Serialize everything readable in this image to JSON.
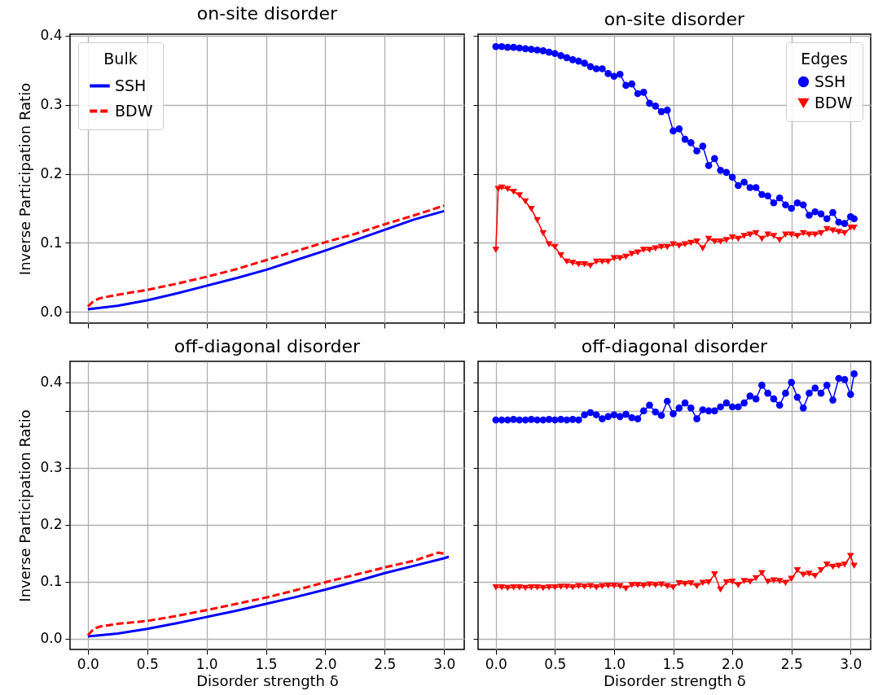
{
  "chart_data": [
    {
      "type": "line",
      "title": "on-site disorder",
      "ylabel": "Inverse Participation Ratio",
      "xlim": [
        -0.15,
        3.17
      ],
      "ylim": [
        -0.016,
        0.402
      ],
      "xticks": [
        0,
        0.5,
        1,
        1.5,
        2,
        2.5,
        3
      ],
      "yticks": [
        {
          "value": 0,
          "label": "0.0"
        },
        0.1,
        0.2,
        0.3,
        0.4
      ],
      "grid": true,
      "tick_labels": "y",
      "legend": "top left",
      "legend_title": "Bulk",
      "series": [
        {
          "name": "SSH",
          "color": "#0000ff",
          "line_style": "solid",
          "x": [
            0,
            0.25,
            0.5,
            0.75,
            1,
            1.25,
            1.5,
            1.75,
            2,
            2.25,
            2.5,
            2.75,
            3
          ],
          "values": [
            0.004,
            0.009,
            0.017,
            0.027,
            0.038,
            0.049,
            0.061,
            0.075,
            0.089,
            0.104,
            0.119,
            0.134,
            0.146
          ]
        },
        {
          "name": "BDW",
          "color": "#ff0000",
          "line_style": "dashed",
          "x": [
            0,
            0.05,
            0.1,
            0.25,
            0.5,
            0.75,
            1,
            1.25,
            1.5,
            1.75,
            2,
            2.25,
            2.5,
            2.75,
            3
          ],
          "values": [
            0.008,
            0.016,
            0.02,
            0.025,
            0.032,
            0.041,
            0.051,
            0.062,
            0.075,
            0.088,
            0.101,
            0.113,
            0.127,
            0.14,
            0.154
          ]
        }
      ]
    },
    {
      "type": "line",
      "title": "on-site disorder",
      "xlim": [
        -0.15,
        3.17
      ],
      "ylim": [
        -0.016,
        0.402
      ],
      "xticks": [
        0,
        0.5,
        1,
        1.5,
        2,
        2.5,
        3
      ],
      "yticks": [
        0,
        0.1,
        0.2,
        0.3,
        0.4
      ],
      "grid": true,
      "tick_labels": false,
      "legend": "top right",
      "legend_title": "Edges",
      "series": [
        {
          "name": "SSH",
          "color": "#0000ff",
          "marker": "circle",
          "x": [
            0,
            0.05,
            0.1,
            0.15,
            0.2,
            0.25,
            0.3,
            0.35,
            0.4,
            0.45,
            0.5,
            0.55,
            0.6,
            0.65,
            0.7,
            0.75,
            0.8,
            0.85,
            0.9,
            0.95,
            1,
            1.05,
            1.1,
            1.15,
            1.2,
            1.25,
            1.3,
            1.35,
            1.4,
            1.45,
            1.5,
            1.55,
            1.6,
            1.65,
            1.7,
            1.75,
            1.8,
            1.85,
            1.9,
            1.95,
            2,
            2.05,
            2.1,
            2.15,
            2.2,
            2.25,
            2.3,
            2.35,
            2.4,
            2.45,
            2.5,
            2.55,
            2.6,
            2.65,
            2.7,
            2.75,
            2.8,
            2.85,
            2.9,
            2.95,
            3,
            3.03
          ],
          "values": [
            0.384,
            0.384,
            0.383,
            0.383,
            0.382,
            0.381,
            0.38,
            0.379,
            0.378,
            0.376,
            0.374,
            0.371,
            0.368,
            0.365,
            0.363,
            0.36,
            0.355,
            0.352,
            0.352,
            0.345,
            0.341,
            0.344,
            0.328,
            0.33,
            0.316,
            0.318,
            0.302,
            0.298,
            0.29,
            0.292,
            0.262,
            0.265,
            0.25,
            0.245,
            0.233,
            0.24,
            0.212,
            0.222,
            0.205,
            0.202,
            0.195,
            0.183,
            0.188,
            0.18,
            0.18,
            0.17,
            0.168,
            0.158,
            0.165,
            0.155,
            0.15,
            0.158,
            0.155,
            0.14,
            0.145,
            0.142,
            0.135,
            0.144,
            0.13,
            0.128,
            0.138,
            0.135
          ]
        },
        {
          "name": "BDW",
          "color": "#ff0000",
          "marker": "triangle",
          "x": [
            0,
            0.02,
            0.05,
            0.1,
            0.15,
            0.2,
            0.25,
            0.3,
            0.35,
            0.4,
            0.45,
            0.5,
            0.55,
            0.6,
            0.65,
            0.7,
            0.75,
            0.8,
            0.85,
            0.9,
            0.95,
            1,
            1.05,
            1.1,
            1.15,
            1.2,
            1.25,
            1.3,
            1.35,
            1.4,
            1.45,
            1.5,
            1.55,
            1.6,
            1.65,
            1.7,
            1.75,
            1.8,
            1.85,
            1.9,
            1.95,
            2,
            2.05,
            2.1,
            2.15,
            2.2,
            2.25,
            2.3,
            2.35,
            2.4,
            2.45,
            2.5,
            2.55,
            2.6,
            2.65,
            2.7,
            2.75,
            2.8,
            2.85,
            2.9,
            2.95,
            3,
            3.03
          ],
          "values": [
            0.09,
            0.178,
            0.18,
            0.178,
            0.174,
            0.169,
            0.16,
            0.149,
            0.133,
            0.114,
            0.098,
            0.094,
            0.082,
            0.073,
            0.071,
            0.069,
            0.069,
            0.067,
            0.073,
            0.073,
            0.073,
            0.078,
            0.078,
            0.08,
            0.084,
            0.086,
            0.09,
            0.09,
            0.092,
            0.094,
            0.094,
            0.098,
            0.096,
            0.098,
            0.1,
            0.102,
            0.092,
            0.106,
            0.102,
            0.102,
            0.104,
            0.108,
            0.106,
            0.11,
            0.112,
            0.114,
            0.106,
            0.112,
            0.11,
            0.104,
            0.112,
            0.112,
            0.11,
            0.114,
            0.112,
            0.112,
            0.114,
            0.12,
            0.118,
            0.116,
            0.114,
            0.122,
            0.122
          ]
        }
      ]
    },
    {
      "type": "line",
      "title": "off-diagonal disorder",
      "xlabel": "Disorder strength δ",
      "ylabel": "Inverse Participation Ratio",
      "xlim": [
        -0.15,
        3.17
      ],
      "ylim": [
        -0.019,
        0.487
      ],
      "xticks": [
        {
          "value": 0,
          "label": "0.0"
        },
        0.5,
        {
          "value": 1,
          "label": "1.0"
        },
        1.5,
        {
          "value": 2,
          "label": "2.0"
        },
        2.5,
        {
          "value": 3,
          "label": "3.0"
        }
      ],
      "yticks": [
        {
          "value": 0,
          "label": "0.0"
        },
        0.1,
        0.2,
        0.3,
        {
          "value": 0.4,
          "label": null
        },
        {
          "value": 0.45,
          "label": "0.4"
        }
      ],
      "grid": true,
      "series": [
        {
          "color": "#0000ff",
          "line_style": "solid",
          "x": [
            0,
            0.25,
            0.5,
            0.75,
            1,
            1.25,
            1.5,
            1.75,
            2,
            2.25,
            2.5,
            2.75,
            3,
            3.04
          ],
          "values": [
            0.004,
            0.009,
            0.017,
            0.027,
            0.038,
            0.049,
            0.061,
            0.073,
            0.086,
            0.1,
            0.115,
            0.128,
            0.141,
            0.144
          ]
        },
        {
          "color": "#ff0000",
          "line_style": "dashed",
          "x": [
            0,
            0.05,
            0.1,
            0.25,
            0.5,
            0.75,
            1,
            1.25,
            1.5,
            1.75,
            2,
            2.25,
            2.5,
            2.75,
            2.95,
            3
          ],
          "values": [
            0.006,
            0.017,
            0.021,
            0.026,
            0.031,
            0.04,
            0.05,
            0.061,
            0.072,
            0.085,
            0.099,
            0.112,
            0.125,
            0.137,
            0.151,
            0.149
          ]
        }
      ]
    },
    {
      "type": "line",
      "title": "off-diagonal disorder",
      "xlabel": "Disorder strength δ",
      "xlim": [
        -0.15,
        3.17
      ],
      "ylim": [
        -0.019,
        0.487
      ],
      "xticks": [
        {
          "value": 0,
          "label": "0.0"
        },
        0.5,
        {
          "value": 1,
          "label": "1.0"
        },
        1.5,
        {
          "value": 2,
          "label": "2.0"
        },
        2.5,
        {
          "value": 3,
          "label": "3.0"
        }
      ],
      "yticks": [
        0,
        0.1,
        0.2,
        0.3,
        0.4,
        {
          "value": 0.45,
          "label": null
        }
      ],
      "grid": true,
      "tick_labels": "x",
      "series": [
        {
          "color": "#0000ff",
          "marker": "circle",
          "x": [
            0,
            0.05,
            0.1,
            0.15,
            0.2,
            0.25,
            0.3,
            0.35,
            0.4,
            0.45,
            0.5,
            0.55,
            0.6,
            0.65,
            0.7,
            0.75,
            0.8,
            0.85,
            0.9,
            0.95,
            1,
            1.05,
            1.1,
            1.15,
            1.2,
            1.25,
            1.3,
            1.35,
            1.4,
            1.45,
            1.5,
            1.55,
            1.6,
            1.65,
            1.7,
            1.75,
            1.8,
            1.85,
            1.9,
            1.95,
            2,
            2.05,
            2.1,
            2.15,
            2.2,
            2.25,
            2.3,
            2.35,
            2.4,
            2.45,
            2.5,
            2.55,
            2.6,
            2.65,
            2.7,
            2.75,
            2.8,
            2.85,
            2.9,
            2.95,
            3,
            3.03
          ],
          "values": [
            0.384,
            0.384,
            0.384,
            0.385,
            0.384,
            0.384,
            0.385,
            0.384,
            0.384,
            0.385,
            0.384,
            0.385,
            0.384,
            0.385,
            0.384,
            0.393,
            0.397,
            0.393,
            0.386,
            0.39,
            0.393,
            0.39,
            0.394,
            0.388,
            0.386,
            0.4,
            0.41,
            0.398,
            0.392,
            0.417,
            0.395,
            0.405,
            0.414,
            0.405,
            0.386,
            0.402,
            0.4,
            0.4,
            0.407,
            0.414,
            0.407,
            0.407,
            0.414,
            0.426,
            0.421,
            0.445,
            0.431,
            0.421,
            0.41,
            0.431,
            0.45,
            0.424,
            0.405,
            0.431,
            0.44,
            0.431,
            0.445,
            0.419,
            0.457,
            0.455,
            0.429,
            0.465
          ]
        },
        {
          "color": "#ff0000",
          "marker": "triangle",
          "x": [
            0,
            0.05,
            0.1,
            0.15,
            0.2,
            0.25,
            0.3,
            0.35,
            0.4,
            0.45,
            0.5,
            0.55,
            0.6,
            0.65,
            0.7,
            0.75,
            0.8,
            0.85,
            0.9,
            0.95,
            1,
            1.05,
            1.1,
            1.15,
            1.2,
            1.25,
            1.3,
            1.35,
            1.4,
            1.45,
            1.5,
            1.55,
            1.6,
            1.65,
            1.7,
            1.75,
            1.8,
            1.85,
            1.9,
            1.95,
            2,
            2.05,
            2.1,
            2.15,
            2.2,
            2.25,
            2.3,
            2.35,
            2.4,
            2.45,
            2.5,
            2.55,
            2.6,
            2.65,
            2.7,
            2.75,
            2.8,
            2.85,
            2.9,
            2.95,
            3,
            3.03
          ],
          "values": [
            0.09,
            0.09,
            0.089,
            0.09,
            0.09,
            0.089,
            0.09,
            0.09,
            0.089,
            0.09,
            0.09,
            0.091,
            0.091,
            0.09,
            0.092,
            0.091,
            0.092,
            0.09,
            0.092,
            0.093,
            0.093,
            0.092,
            0.088,
            0.094,
            0.094,
            0.093,
            0.095,
            0.094,
            0.095,
            0.092,
            0.09,
            0.097,
            0.096,
            0.097,
            0.092,
            0.098,
            0.099,
            0.113,
            0.086,
            0.099,
            0.1,
            0.094,
            0.101,
            0.1,
            0.106,
            0.115,
            0.1,
            0.102,
            0.101,
            0.098,
            0.105,
            0.12,
            0.112,
            0.114,
            0.11,
            0.12,
            0.13,
            0.126,
            0.128,
            0.13,
            0.145,
            0.128
          ]
        }
      ]
    }
  ]
}
